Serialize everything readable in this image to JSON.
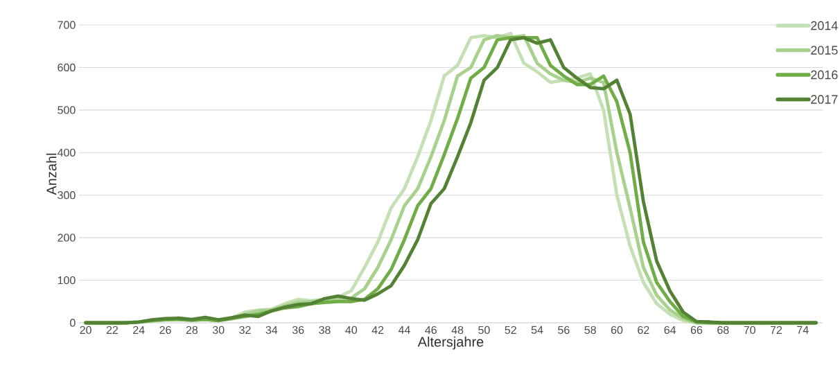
{
  "chart_data": {
    "type": "line",
    "xlabel": "Altersjahre",
    "ylabel": "Anzahl",
    "categories": [
      "20",
      null,
      "22",
      null,
      "24",
      null,
      "26",
      null,
      "28",
      null,
      "30",
      null,
      "32",
      null,
      "34",
      null,
      "36",
      null,
      "38",
      null,
      "40",
      null,
      "42",
      null,
      "44",
      null,
      "46",
      null,
      "48",
      null,
      "50",
      null,
      "52",
      null,
      "54",
      null,
      "56",
      null,
      "58",
      null,
      "60",
      null,
      "62",
      null,
      "64",
      null,
      "66",
      null,
      "68",
      null,
      "70",
      null,
      "72",
      null,
      "74",
      null
    ],
    "series": [
      {
        "name": "2014",
        "color": "#c5e0b4",
        "values": [
          0,
          0,
          0,
          0,
          2,
          5,
          7,
          8,
          6,
          8,
          5,
          12,
          25,
          30,
          32,
          45,
          55,
          52,
          55,
          60,
          75,
          130,
          190,
          270,
          315,
          390,
          475,
          580,
          605,
          670,
          675,
          670,
          680,
          610,
          590,
          565,
          570,
          575,
          585,
          500,
          300,
          180,
          95,
          45,
          20,
          5,
          0,
          0,
          0,
          0,
          0,
          0,
          0,
          0,
          0,
          0
        ]
      },
      {
        "name": "2015",
        "color": "#a9d18e",
        "values": [
          0,
          0,
          0,
          0,
          2,
          5,
          7,
          8,
          6,
          8,
          5,
          10,
          20,
          28,
          30,
          40,
          48,
          50,
          52,
          55,
          58,
          80,
          130,
          195,
          275,
          315,
          390,
          475,
          580,
          600,
          665,
          675,
          670,
          675,
          610,
          585,
          570,
          565,
          575,
          565,
          400,
          270,
          130,
          65,
          30,
          10,
          0,
          0,
          0,
          0,
          0,
          0,
          0,
          0,
          0,
          0
        ]
      },
      {
        "name": "2016",
        "color": "#70ad47",
        "values": [
          0,
          0,
          0,
          0,
          2,
          5,
          7,
          8,
          6,
          8,
          5,
          10,
          15,
          20,
          28,
          35,
          38,
          45,
          48,
          50,
          50,
          55,
          80,
          125,
          195,
          275,
          315,
          395,
          480,
          575,
          600,
          665,
          670,
          670,
          670,
          605,
          580,
          560,
          560,
          580,
          520,
          400,
          190,
          95,
          50,
          15,
          2,
          0,
          0,
          0,
          0,
          0,
          0,
          0,
          0,
          0
        ]
      },
      {
        "name": "2017",
        "color": "#548235",
        "values": [
          0,
          0,
          0,
          0,
          2,
          7,
          10,
          11,
          8,
          13,
          7,
          12,
          18,
          15,
          28,
          37,
          43,
          45,
          57,
          63,
          57,
          53,
          68,
          87,
          135,
          195,
          280,
          315,
          390,
          470,
          570,
          600,
          665,
          670,
          657,
          665,
          600,
          575,
          553,
          550,
          570,
          490,
          285,
          145,
          75,
          25,
          3,
          2,
          0,
          0,
          0,
          0,
          0,
          0,
          0,
          0
        ]
      }
    ],
    "ylim": [
      0,
      700
    ],
    "yticks": [
      0,
      100,
      200,
      300,
      400,
      500,
      600,
      700
    ],
    "grid": "y",
    "legend": "top right"
  }
}
